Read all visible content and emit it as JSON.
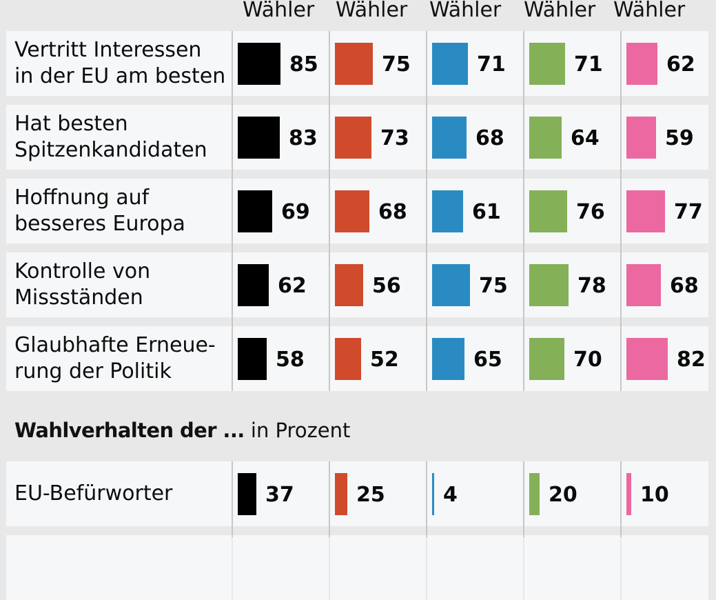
{
  "header": {
    "columns": [
      "Wähler",
      "Wähler",
      "Wähler",
      "Wähler",
      "Wähler"
    ]
  },
  "section2": {
    "title_bold": "Wahlverhalten der ...",
    "title_regular": "in Prozent"
  },
  "colors": {
    "background": "#e8e8e8",
    "cell": "#f5f7f9",
    "series": [
      "#000000",
      "#d04a2c",
      "#2a8bc2",
      "#84b058",
      "#ec68a0"
    ]
  },
  "chart_data": [
    {
      "type": "bar",
      "orientation": "horizontal",
      "title": "",
      "xlabel": "",
      "ylabel": "",
      "xlim": [
        0,
        100
      ],
      "grid": false,
      "categories": [
        "Vertritt Interessen in der EU am besten",
        "Hat besten Spitzenkandidaten",
        "Hoffnung auf besseres Europa",
        "Kontrolle von Missständen",
        "Glaubhafte Erneuerung der Politik"
      ],
      "category_lines": [
        [
          "Vertritt Interessen",
          "in der EU am besten"
        ],
        [
          "Hat besten",
          "Spitzenkandidaten"
        ],
        [
          "Hoffnung auf",
          "besseres Europa"
        ],
        [
          "Kontrolle von",
          "Missständen"
        ],
        [
          "Glaubhafte Erneue-",
          "rung der Politik"
        ]
      ],
      "series": [
        {
          "name": "Wähler",
          "color": "#000000",
          "values": [
            85,
            83,
            69,
            62,
            58
          ]
        },
        {
          "name": "Wähler",
          "color": "#d04a2c",
          "values": [
            75,
            73,
            68,
            56,
            52
          ]
        },
        {
          "name": "Wähler",
          "color": "#2a8bc2",
          "values": [
            71,
            68,
            61,
            75,
            65
          ]
        },
        {
          "name": "Wähler",
          "color": "#84b058",
          "values": [
            71,
            64,
            76,
            78,
            70
          ]
        },
        {
          "name": "Wähler",
          "color": "#ec68a0",
          "values": [
            62,
            59,
            77,
            68,
            82
          ]
        }
      ]
    },
    {
      "type": "bar",
      "orientation": "horizontal",
      "title": "Wahlverhalten der ... in Prozent",
      "xlabel": "",
      "ylabel": "",
      "xlim": [
        0,
        100
      ],
      "grid": false,
      "categories": [
        "EU-Befürworter"
      ],
      "category_lines": [
        [
          "EU-Befürworter"
        ]
      ],
      "series": [
        {
          "name": "Wähler",
          "color": "#000000",
          "values": [
            37
          ]
        },
        {
          "name": "Wähler",
          "color": "#d04a2c",
          "values": [
            25
          ]
        },
        {
          "name": "Wähler",
          "color": "#2a8bc2",
          "values": [
            4
          ]
        },
        {
          "name": "Wähler",
          "color": "#84b058",
          "values": [
            20
          ]
        },
        {
          "name": "Wähler",
          "color": "#ec68a0",
          "values": [
            10
          ]
        }
      ]
    }
  ]
}
